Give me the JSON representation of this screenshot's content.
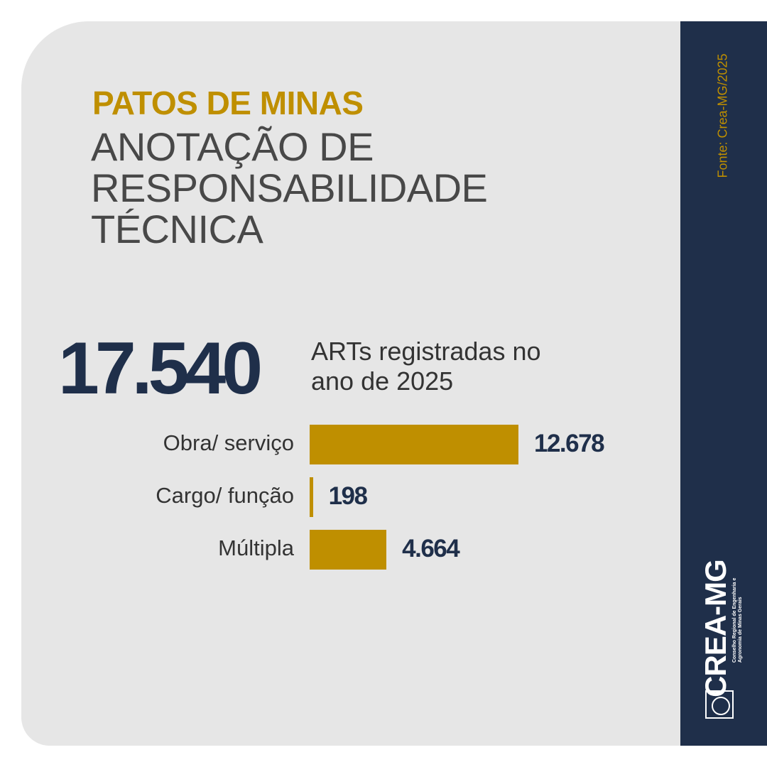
{
  "chart_data": {
    "type": "bar",
    "title": "PATOS DE MINAS",
    "subtitle": "ANOTAÇÃO DE RESPONSABILIDADE TÉCNICA",
    "total": "17.540",
    "total_caption": "ARTs registradas no ano de 2025",
    "categories": [
      "Obra/ serviço",
      "Cargo/ função",
      "Múltipla"
    ],
    "values": [
      12678,
      198,
      4664
    ],
    "value_labels": [
      "12.678",
      "198",
      "4.664"
    ],
    "color": "#bf8f00"
  },
  "source": "Fonte: Crea-MG/2025",
  "logo": {
    "name": "CREA-MG",
    "tagline": "Conselho Regional de Engenharia e Agronomia de Minas Gerais"
  }
}
